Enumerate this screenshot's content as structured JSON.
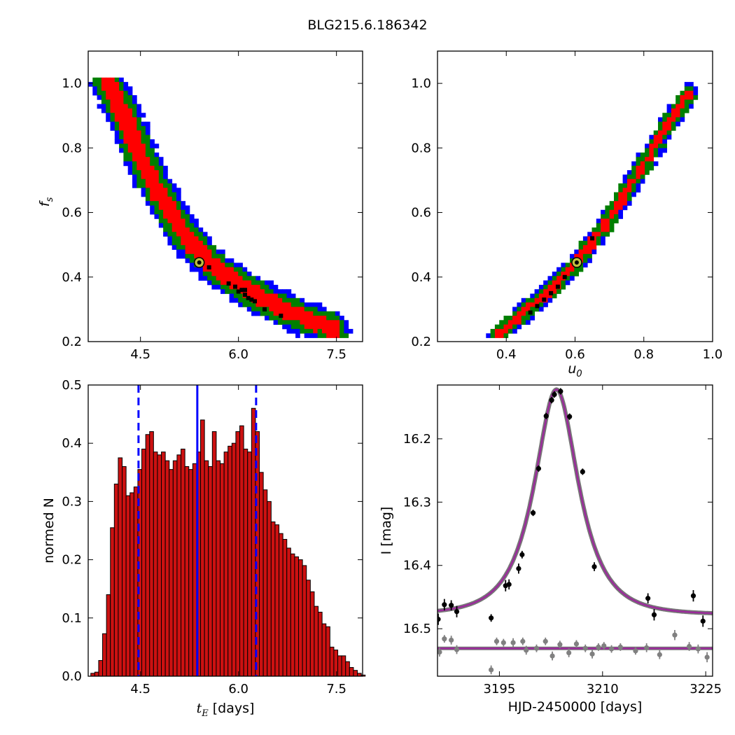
{
  "title": "BLG215.6.186342",
  "colors": {
    "ci1": "#ff0000",
    "ci2": "#007f00",
    "ci3": "#0000ff",
    "best": "#000000",
    "marker_face": "#bfbf3f",
    "bar": "#cc1111",
    "model": "#9b2a9b",
    "data_main": "#000000",
    "data_secondary": "#808080",
    "stat_line": "#0000ff"
  },
  "chart_data": [
    {
      "type": "heatmap",
      "panel": "tE-fs",
      "ylabel_main": "f",
      "ylabel_sub": "s",
      "xlabel": "",
      "xlim": [
        3.7,
        7.9
      ],
      "ylim": [
        0.2,
        1.1
      ],
      "xticks": [
        "4.5",
        "6.0",
        "7.5"
      ],
      "yticks": [
        "0.2",
        "0.4",
        "0.6",
        "0.8",
        "1.0"
      ],
      "region_spine": [
        [
          4.0,
          1.0
        ],
        [
          4.25,
          0.9
        ],
        [
          4.55,
          0.75
        ],
        [
          4.9,
          0.62
        ],
        [
          5.3,
          0.5
        ],
        [
          5.7,
          0.42
        ],
        [
          6.2,
          0.35
        ],
        [
          6.8,
          0.29
        ],
        [
          7.45,
          0.24
        ]
      ],
      "best_fit": {
        "x": 5.4,
        "y": 0.445
      },
      "levels": [
        "1 sigma",
        "2 sigma",
        "3 sigma"
      ]
    },
    {
      "type": "heatmap",
      "panel": "u0-fs",
      "xlabel_main": "u",
      "xlabel_sub": "0",
      "xlim": [
        0.2,
        1.0
      ],
      "ylim": [
        0.2,
        1.1
      ],
      "xticks": [
        "0.4",
        "0.6",
        "0.8",
        "1.0"
      ],
      "yticks": [
        "0.2",
        "0.4",
        "0.6",
        "0.8",
        "1.0"
      ],
      "region_spine": [
        [
          0.375,
          0.22
        ],
        [
          0.45,
          0.29
        ],
        [
          0.52,
          0.35
        ],
        [
          0.6,
          0.44
        ],
        [
          0.68,
          0.55
        ],
        [
          0.76,
          0.68
        ],
        [
          0.84,
          0.82
        ],
        [
          0.93,
          0.97
        ]
      ],
      "best_fit": {
        "x": 0.605,
        "y": 0.445
      },
      "levels": [
        "1 sigma",
        "2 sigma",
        "3 sigma"
      ]
    },
    {
      "type": "bar",
      "panel": "tE-histogram",
      "xlabel_main": "t",
      "xlabel_sub": "E",
      "xlabel_unit": " [days]",
      "ylabel": "normed N",
      "xlim": [
        3.7,
        7.9
      ],
      "ylim": [
        0.0,
        0.5
      ],
      "xticks": [
        "4.5",
        "6.0",
        "7.5"
      ],
      "yticks": [
        "0.0",
        "0.1",
        "0.2",
        "0.3",
        "0.4",
        "0.5"
      ],
      "bin_start": 3.74,
      "bin_width": 0.06,
      "values": [
        0.005,
        0.007,
        0.027,
        0.073,
        0.14,
        0.255,
        0.33,
        0.375,
        0.36,
        0.31,
        0.315,
        0.325,
        0.355,
        0.39,
        0.415,
        0.42,
        0.385,
        0.38,
        0.385,
        0.37,
        0.355,
        0.37,
        0.38,
        0.39,
        0.36,
        0.355,
        0.365,
        0.385,
        0.44,
        0.37,
        0.36,
        0.42,
        0.37,
        0.365,
        0.385,
        0.395,
        0.4,
        0.42,
        0.43,
        0.39,
        0.385,
        0.46,
        0.42,
        0.35,
        0.32,
        0.3,
        0.265,
        0.26,
        0.245,
        0.235,
        0.22,
        0.21,
        0.205,
        0.2,
        0.19,
        0.165,
        0.145,
        0.12,
        0.11,
        0.09,
        0.085,
        0.05,
        0.045,
        0.035,
        0.035,
        0.025,
        0.015,
        0.01,
        0.005,
        0.002
      ],
      "vlines": [
        {
          "x": 4.47,
          "style": "dashed"
        },
        {
          "x": 5.37,
          "style": "solid"
        },
        {
          "x": 6.27,
          "style": "dashed"
        }
      ]
    },
    {
      "type": "scatter",
      "panel": "light-curve",
      "xlabel": "HJD-2450000 [days]",
      "ylabel": "I [mag]",
      "xlim": [
        3186,
        3226
      ],
      "ylim": [
        16.575,
        16.115
      ],
      "y_inverted": true,
      "xticks": [
        "3195",
        "3210",
        "3225"
      ],
      "yticks": [
        "16.2",
        "16.3",
        "16.4",
        "16.5"
      ],
      "model": {
        "t0": 3203.3,
        "tE": 5.4,
        "u0": 0.605,
        "fs": 0.445,
        "i_base": 16.478
      },
      "series": [
        {
          "role": "main",
          "x": [
            3186.1,
            3187.0,
            3188.0,
            3188.8,
            3193.8,
            3195.9,
            3196.4,
            3197.8,
            3198.3,
            3199.9,
            3200.7,
            3201.8,
            3202.6,
            3203.0,
            3203.9,
            3205.2,
            3207.1,
            3208.8,
            3216.6,
            3217.5,
            3223.2,
            3224.6
          ],
          "y": [
            16.485,
            16.462,
            16.463,
            16.473,
            16.483,
            16.432,
            16.43,
            16.405,
            16.383,
            16.317,
            16.247,
            16.164,
            16.139,
            16.13,
            16.125,
            16.165,
            16.252,
            16.402,
            16.452,
            16.478,
            16.448,
            16.488
          ],
          "err": [
            0.009,
            0.009,
            0.008,
            0.009,
            0.006,
            0.009,
            0.008,
            0.008,
            0.006,
            0.005,
            0.005,
            0.005,
            0.005,
            0.005,
            0.005,
            0.005,
            0.005,
            0.007,
            0.008,
            0.009,
            0.009,
            0.009
          ]
        },
        {
          "role": "secondary",
          "x": [
            3186.3,
            3187.0,
            3188.0,
            3188.8,
            3193.8,
            3194.6,
            3195.6,
            3197.0,
            3198.4,
            3198.9,
            3200.4,
            3201.7,
            3202.7,
            3203.8,
            3205.1,
            3206.2,
            3207.5,
            3208.5,
            3209.4,
            3210.2,
            3211.3,
            3212.6,
            3214.8,
            3216.4,
            3218.3,
            3220.5,
            3222.6,
            3223.9,
            3225.2
          ],
          "y": [
            16.537,
            16.516,
            16.518,
            16.533,
            16.565,
            16.52,
            16.522,
            16.522,
            16.52,
            16.534,
            16.531,
            16.52,
            16.543,
            16.525,
            16.538,
            16.524,
            16.531,
            16.54,
            16.529,
            16.527,
            16.532,
            16.529,
            16.535,
            16.53,
            16.541,
            16.51,
            16.528,
            16.532,
            16.545
          ],
          "err": [
            0.007,
            0.006,
            0.007,
            0.007,
            0.007,
            0.006,
            0.006,
            0.007,
            0.006,
            0.007,
            0.006,
            0.006,
            0.007,
            0.006,
            0.007,
            0.006,
            0.006,
            0.007,
            0.006,
            0.006,
            0.006,
            0.006,
            0.006,
            0.007,
            0.007,
            0.008,
            0.007,
            0.007,
            0.008
          ]
        }
      ]
    }
  ]
}
